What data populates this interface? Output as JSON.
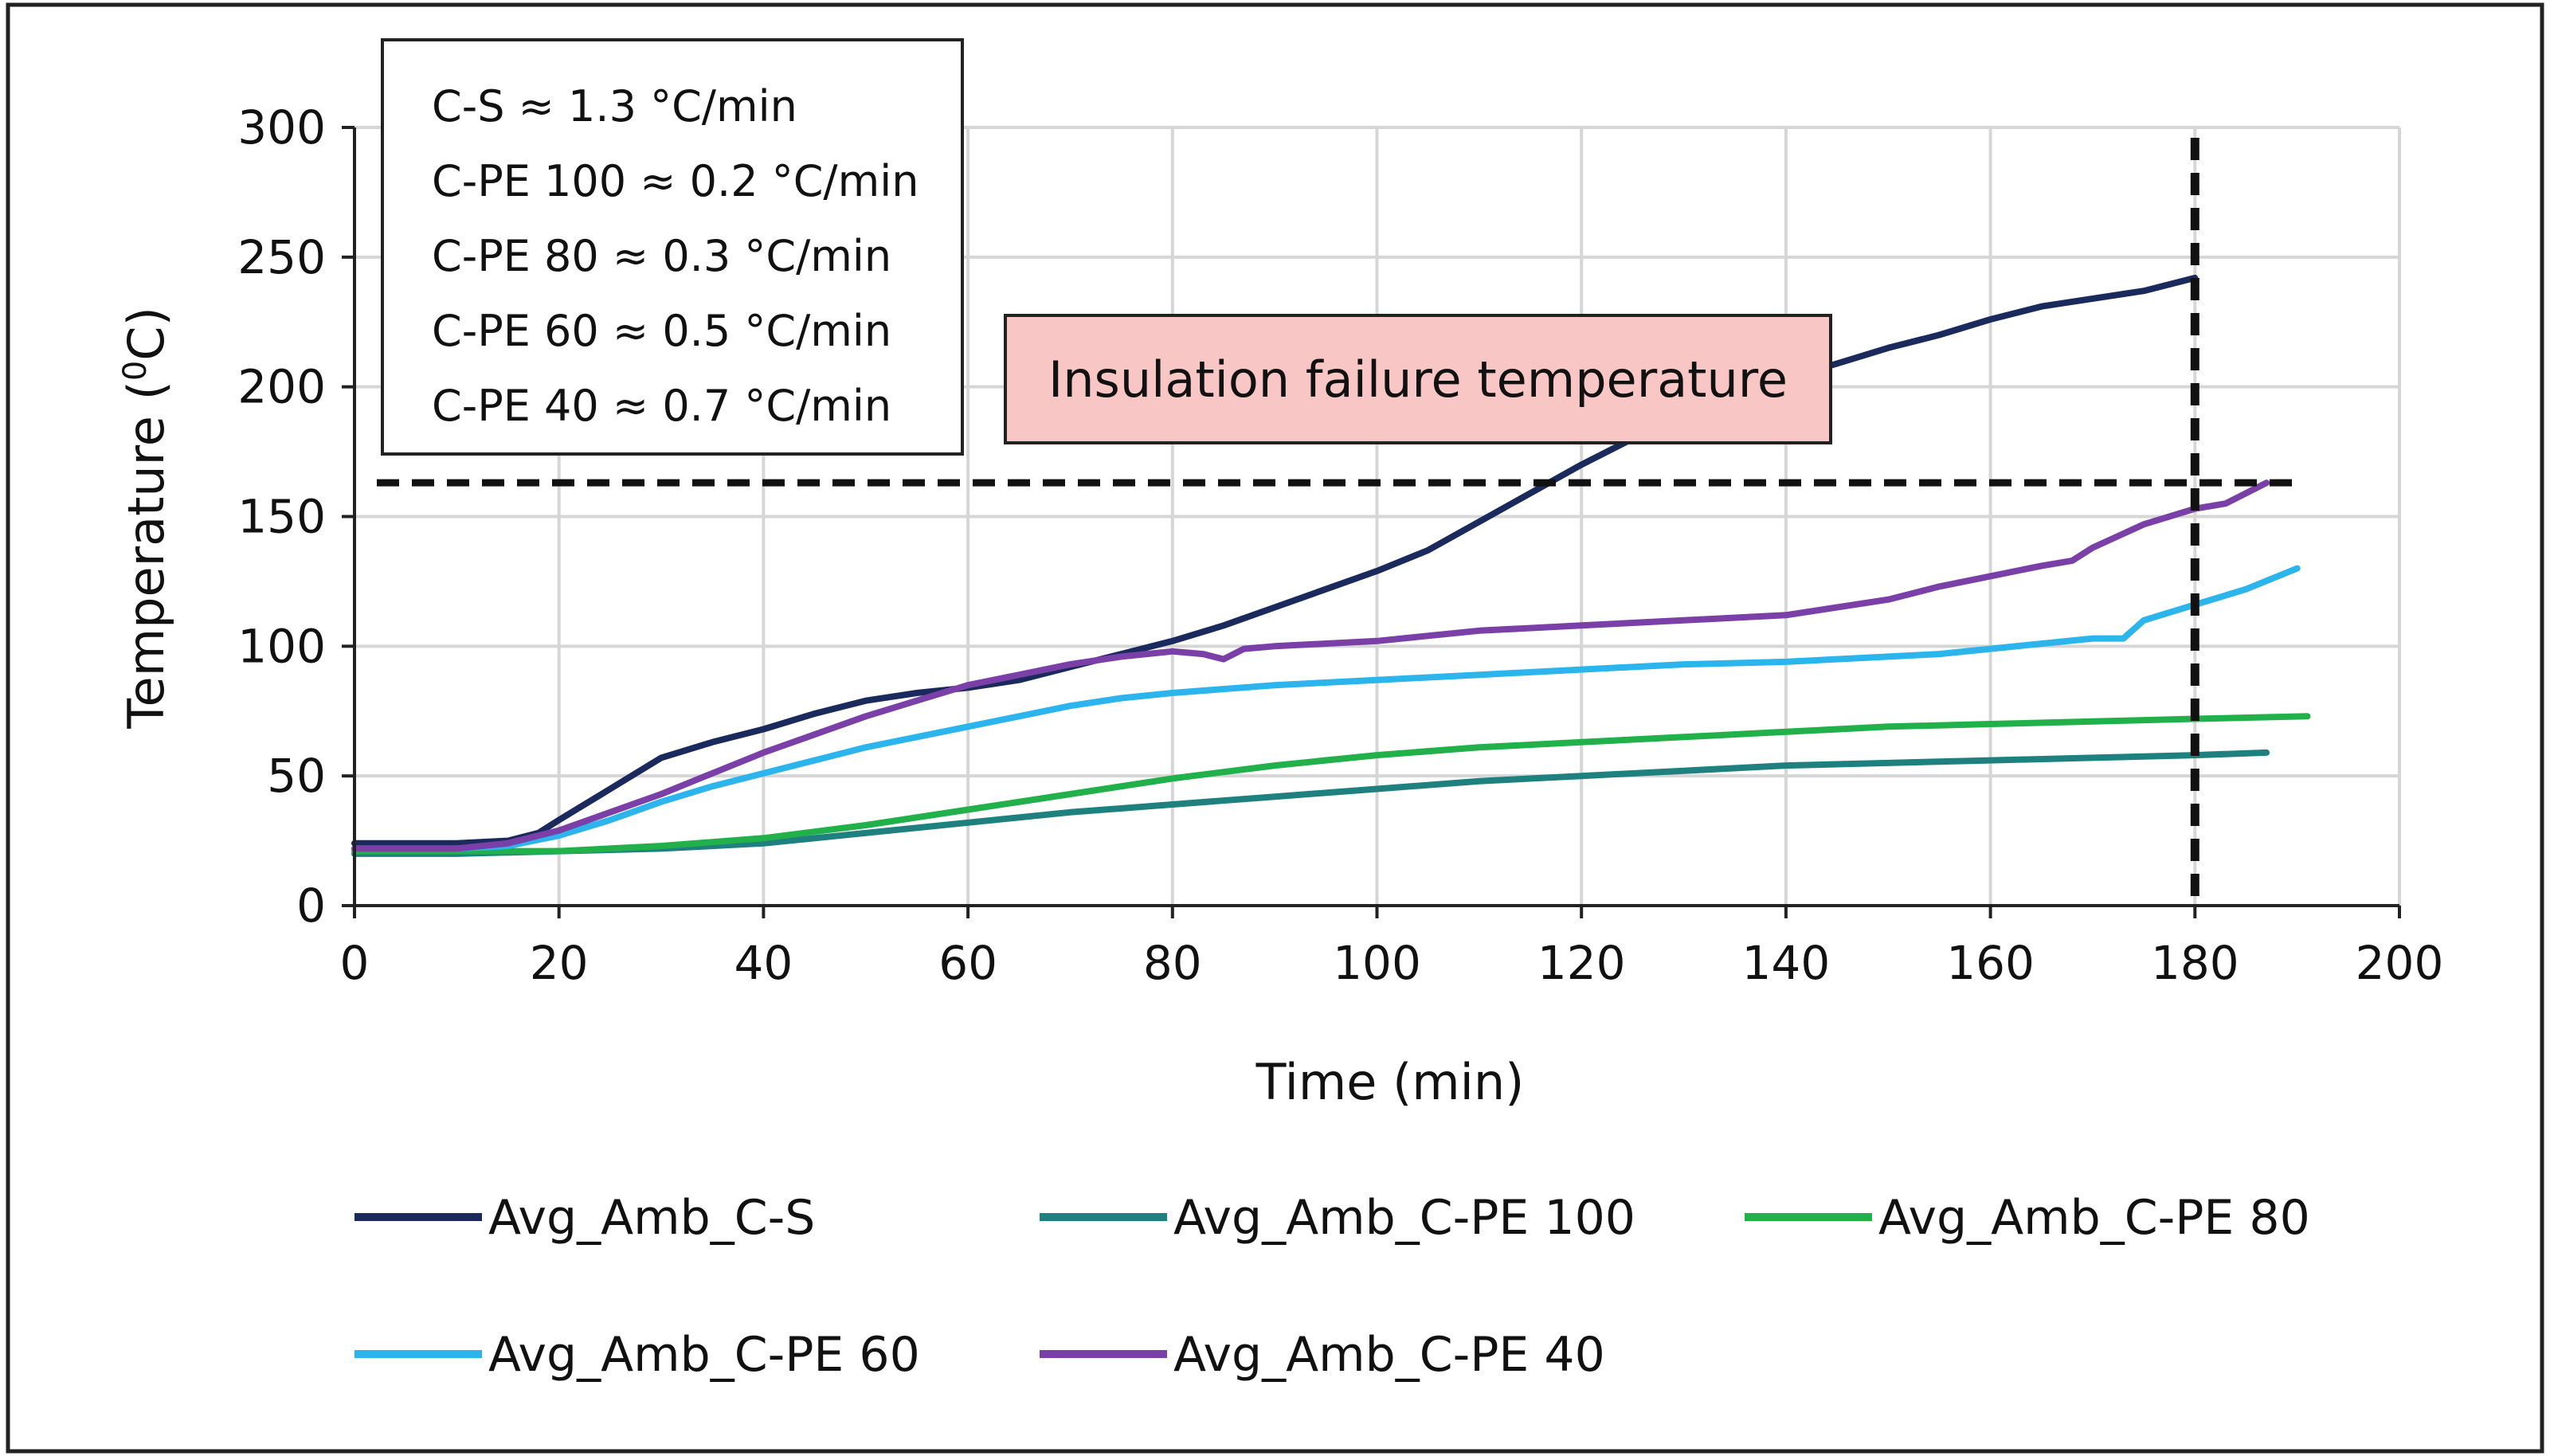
{
  "chart_data": {
    "type": "line",
    "xlabel": "Time (min)",
    "ylabel": "Temperature (",
    "ylabel_sup": "0",
    "ylabel_suffix": "C)",
    "xlim": [
      0,
      200
    ],
    "ylim": [
      0,
      300
    ],
    "xticks": [
      0,
      20,
      40,
      60,
      80,
      100,
      120,
      140,
      160,
      180,
      200
    ],
    "yticks": [
      0,
      50,
      100,
      150,
      200,
      250,
      300
    ],
    "grid": true,
    "legend_position": "bottom",
    "series": [
      {
        "name": "Avg_Amb_C-S",
        "color": "#1b2a5c",
        "x": [
          0,
          5,
          10,
          15,
          18,
          20,
          25,
          30,
          35,
          40,
          45,
          50,
          55,
          60,
          65,
          70,
          75,
          80,
          85,
          90,
          95,
          100,
          105,
          110,
          115,
          120,
          125,
          130,
          135,
          140,
          145,
          150,
          155,
          160,
          165,
          170,
          175,
          180
        ],
        "y": [
          24,
          24,
          24,
          25,
          28,
          33,
          45,
          57,
          63,
          68,
          74,
          79,
          82,
          84,
          87,
          92,
          97,
          102,
          108,
          115,
          122,
          129,
          137,
          148,
          159,
          170,
          180,
          188,
          195,
          203,
          209,
          215,
          220,
          226,
          231,
          234,
          237,
          242
        ]
      },
      {
        "name": "Avg_Amb_C-PE 100",
        "color": "#1f8080",
        "x": [
          0,
          10,
          20,
          30,
          40,
          50,
          60,
          70,
          80,
          90,
          100,
          110,
          120,
          130,
          140,
          150,
          160,
          170,
          180,
          187
        ],
        "y": [
          20,
          20,
          21,
          22,
          24,
          28,
          32,
          36,
          39,
          42,
          45,
          48,
          50,
          52,
          54,
          55,
          56,
          57,
          58,
          59
        ]
      },
      {
        "name": "Avg_Amb_C-PE 80",
        "color": "#22b04b",
        "x": [
          0,
          10,
          20,
          30,
          40,
          50,
          60,
          70,
          80,
          90,
          100,
          110,
          120,
          130,
          140,
          150,
          160,
          170,
          180,
          191
        ],
        "y": [
          21,
          21,
          21,
          23,
          26,
          31,
          37,
          43,
          49,
          54,
          58,
          61,
          63,
          65,
          67,
          69,
          70,
          71,
          72,
          73
        ]
      },
      {
        "name": "Avg_Amb_C-PE 60",
        "color": "#2cb4ec",
        "x": [
          0,
          10,
          15,
          20,
          25,
          30,
          35,
          40,
          45,
          50,
          55,
          60,
          65,
          70,
          75,
          80,
          90,
          100,
          110,
          120,
          130,
          140,
          150,
          155,
          160,
          165,
          170,
          173,
          175,
          180,
          185,
          190
        ],
        "y": [
          22,
          22,
          23,
          27,
          33,
          40,
          46,
          51,
          56,
          61,
          65,
          69,
          73,
          77,
          80,
          82,
          85,
          87,
          89,
          91,
          93,
          94,
          96,
          97,
          99,
          101,
          103,
          103,
          110,
          116,
          122,
          130
        ]
      },
      {
        "name": "Avg_Amb_C-PE 40",
        "color": "#7b3fa8",
        "x": [
          0,
          10,
          15,
          20,
          25,
          30,
          35,
          40,
          45,
          50,
          55,
          60,
          65,
          70,
          75,
          80,
          83,
          85,
          87,
          90,
          100,
          110,
          120,
          130,
          140,
          150,
          155,
          160,
          165,
          168,
          170,
          175,
          180,
          183,
          185,
          187
        ],
        "y": [
          22,
          22,
          24,
          29,
          36,
          43,
          51,
          59,
          66,
          73,
          79,
          85,
          89,
          93,
          96,
          98,
          97,
          95,
          99,
          100,
          102,
          106,
          108,
          110,
          112,
          118,
          123,
          127,
          131,
          133,
          138,
          147,
          153,
          155,
          159,
          163
        ]
      }
    ],
    "annotations": {
      "rates": [
        "C-S ≈ 1.3 °C/min",
        "C-PE 100 ≈ 0.2 °C/min",
        "C-PE 80 ≈ 0.3 °C/min",
        "C-PE 60 ≈ 0.5 °C/min",
        "C-PE 40 ≈ 0.7 °C/min"
      ],
      "failure_label": "Insulation failure temperature",
      "failure_temperature": 163,
      "failure_time": 180,
      "failure_line_x_end": 190
    }
  }
}
